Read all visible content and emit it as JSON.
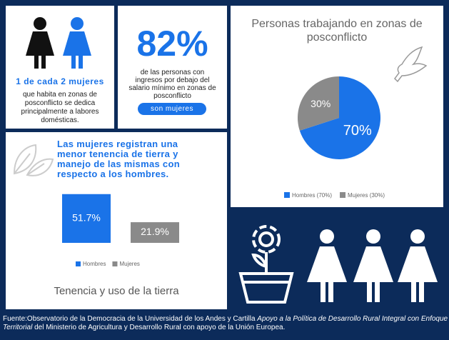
{
  "chart_data": [
    {
      "type": "pie",
      "title": "Personas trabajando en zonas de posconflicto",
      "categories": [
        "Hombres (70%)",
        "Mujeres (30%)"
      ],
      "values": [
        70,
        30
      ],
      "value_labels": [
        "70%",
        "30%"
      ],
      "colors": [
        "#1a73e8",
        "#8a8a8a"
      ]
    },
    {
      "type": "bar",
      "title": "Tenencia y uso de la tierra",
      "subtitle": "Las mujeres registran una menor tenencia de tierra y manejo de las mismas con respecto a los hombres.",
      "categories": [
        "Hombres",
        "Mujeres"
      ],
      "values": [
        51.7,
        21.9
      ],
      "value_labels": [
        "51.7%",
        "21.9%"
      ],
      "colors": [
        "#1a73e8",
        "#8a8a8a"
      ]
    }
  ],
  "stat_left": {
    "headline": "1 de cada 2 mujeres",
    "text": "que habita en zonas de posconflicto se dedica principalmente a labores domésticas."
  },
  "stat_center": {
    "value": "82%",
    "text": "de las personas con ingresos por debajo del salario mínimo en zonas de posconflicto",
    "button": "son mujeres"
  },
  "footer": {
    "source": "Fuente:Observatorio de la Democracia de la Universidad de los Andes y Cartilla",
    "title": "Apoyo a la Política de Desarrollo Rural Integral con Enfoque Territorial",
    "rest": "del Ministerio de Agricultura y Desarrollo Rural con apoyo de la Unión Europea."
  }
}
